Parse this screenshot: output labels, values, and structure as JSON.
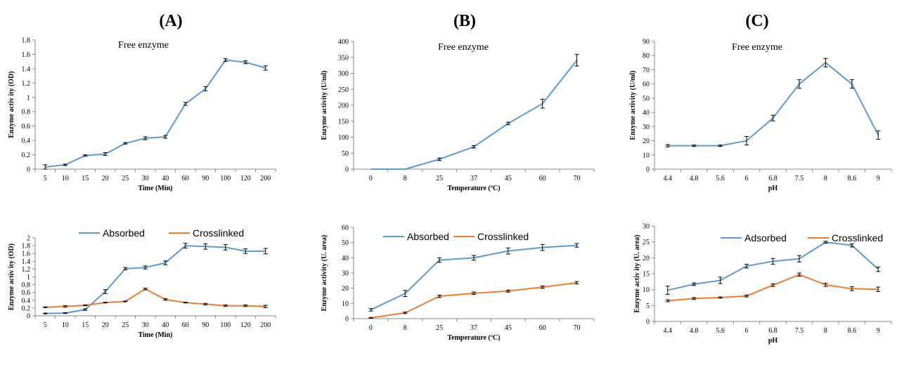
{
  "panels": [
    "(A)",
    "(B)",
    "(C)"
  ],
  "colors": {
    "blue": "#5B9BD5",
    "orange": "#ED7D31"
  },
  "chart_data": [
    {
      "type": "line",
      "title": "Free enzyme",
      "xlabel": "Time (Min)",
      "ylabel": "Enzyme activ ity (OD)",
      "categories": [
        "5",
        "10",
        "15",
        "20",
        "25",
        "30",
        "40",
        "60",
        "90",
        "100",
        "120",
        "200"
      ],
      "ylim": [
        0,
        1.8
      ],
      "yticks": [
        "0",
        "0.2",
        "0.4",
        "0.6",
        "0.8",
        "1",
        "1.2",
        "1.4",
        "1.6",
        "1.8"
      ],
      "series": [
        {
          "color": "#5B9BD5",
          "values": [
            0.03,
            0.06,
            0.19,
            0.21,
            0.36,
            0.43,
            0.45,
            0.91,
            1.12,
            1.52,
            1.49,
            1.41
          ],
          "errors": [
            0.03,
            0.01,
            0.01,
            0.02,
            0.01,
            0.02,
            0.02,
            0.02,
            0.03,
            0.02,
            0.02,
            0.03
          ]
        }
      ]
    },
    {
      "type": "line",
      "title": "Free enzyme",
      "xlabel": "Temperature (ºC)",
      "ylabel": "Enzyme activity (U/ml)",
      "categories": [
        "0",
        "8",
        "25",
        "37",
        "45",
        "60",
        "70"
      ],
      "ylim": [
        0,
        400
      ],
      "yticks": [
        "0",
        "50",
        "100",
        "150",
        "200",
        "250",
        "300",
        "350",
        "400"
      ],
      "series": [
        {
          "color": "#5B9BD5",
          "values": [
            0,
            0,
            31,
            70,
            143,
            205,
            341
          ],
          "errors": [
            0,
            0,
            4,
            4,
            4,
            14,
            18
          ]
        }
      ]
    },
    {
      "type": "line",
      "title": "Free enzyme",
      "xlabel": "pH",
      "ylabel": "Enzyme activity (U/ml)",
      "categories": [
        "4.4",
        "4.8",
        "5.6",
        "6",
        "6.8",
        "7.5",
        "8",
        "8.6",
        "9"
      ],
      "ylim": [
        0,
        90
      ],
      "yticks": [
        "0",
        "10",
        "20",
        "30",
        "40",
        "50",
        "60",
        "70",
        "80",
        "90"
      ],
      "series": [
        {
          "color": "#5B9BD5",
          "values": [
            16.5,
            16.5,
            16.5,
            20,
            36,
            60,
            75,
            60,
            24
          ],
          "errors": [
            0.8,
            0.5,
            0.5,
            3,
            2,
            3,
            3,
            3,
            3
          ]
        }
      ]
    },
    {
      "type": "line",
      "xlabel": "Time (Min)",
      "ylabel": "Enzyme activ ity (OD)",
      "categories": [
        "5",
        "10",
        "15",
        "20",
        "25",
        "30",
        "40",
        "60",
        "90",
        "100",
        "120",
        "200"
      ],
      "ylim": [
        0,
        2
      ],
      "yticks": [
        "0",
        "0.2",
        "0.4",
        "0.6",
        "0.8",
        "1",
        "1.2",
        "1.4",
        "1.6",
        "1.8",
        "2"
      ],
      "legend_position": "top",
      "series": [
        {
          "name": "Absorbed",
          "color": "#5B9BD5",
          "values": [
            0.06,
            0.07,
            0.16,
            0.62,
            1.21,
            1.24,
            1.36,
            1.8,
            1.78,
            1.76,
            1.66,
            1.66
          ],
          "errors": [
            0.01,
            0.01,
            0.02,
            0.05,
            0.03,
            0.04,
            0.05,
            0.06,
            0.07,
            0.07,
            0.06,
            0.07
          ]
        },
        {
          "name": "Crosslinked",
          "color": "#ED7D31",
          "values": [
            0.22,
            0.24,
            0.27,
            0.34,
            0.37,
            0.69,
            0.42,
            0.34,
            0.3,
            0.26,
            0.26,
            0.24
          ],
          "errors": [
            0.01,
            0.02,
            0.01,
            0.01,
            0.01,
            0.02,
            0.02,
            0.01,
            0.02,
            0.02,
            0.02,
            0.03
          ]
        }
      ]
    },
    {
      "type": "line",
      "xlabel": "Temperature (ºC)",
      "ylabel": "Enzyme activity (U. area)",
      "categories": [
        "0",
        "8",
        "25",
        "37",
        "45",
        "60",
        "70"
      ],
      "ylim": [
        0,
        60
      ],
      "yticks": [
        "0",
        "10",
        "20",
        "30",
        "40",
        "50",
        "60"
      ],
      "legend_position": "top",
      "series": [
        {
          "name": "Absorbed",
          "color": "#5B9BD5",
          "values": [
            5.8,
            16.5,
            38.5,
            40,
            44.5,
            46.8,
            48.2
          ],
          "errors": [
            0.8,
            2,
            1.5,
            1.5,
            2,
            2,
            1.2
          ]
        },
        {
          "name": "Crosslinked",
          "color": "#ED7D31",
          "values": [
            0.5,
            3.8,
            14.7,
            16.7,
            18.1,
            20.7,
            23.6
          ],
          "errors": [
            0.3,
            0.5,
            0.8,
            0.8,
            0.7,
            0.8,
            0.8
          ]
        }
      ]
    },
    {
      "type": "line",
      "xlabel": "pH",
      "ylabel": "Enzyme activ ity (U. area)",
      "categories": [
        "4.4",
        "4.8",
        "5.6",
        "6",
        "6.8",
        "7.5",
        "8",
        "8.6",
        "9"
      ],
      "ylim": [
        0,
        30
      ],
      "yticks": [
        "0",
        "5",
        "10",
        "15",
        "20",
        "25",
        "30"
      ],
      "legend_position": "top",
      "series": [
        {
          "name": "Adsorbed",
          "color": "#5B9BD5",
          "values": [
            9.8,
            11.7,
            12.9,
            17.4,
            18.9,
            19.7,
            24.9,
            23.9,
            16.4
          ],
          "errors": [
            1.3,
            0.4,
            1,
            0.6,
            0.9,
            1,
            0.3,
            0.5,
            0.7
          ]
        },
        {
          "name": "Crosslinked",
          "color": "#ED7D31",
          "values": [
            6.5,
            7.2,
            7.5,
            8,
            11.4,
            14.7,
            11.5,
            10.3,
            10.1
          ],
          "errors": [
            0.3,
            0.3,
            0.2,
            0.3,
            0.4,
            0.5,
            0.5,
            0.6,
            0.7
          ]
        }
      ]
    }
  ]
}
